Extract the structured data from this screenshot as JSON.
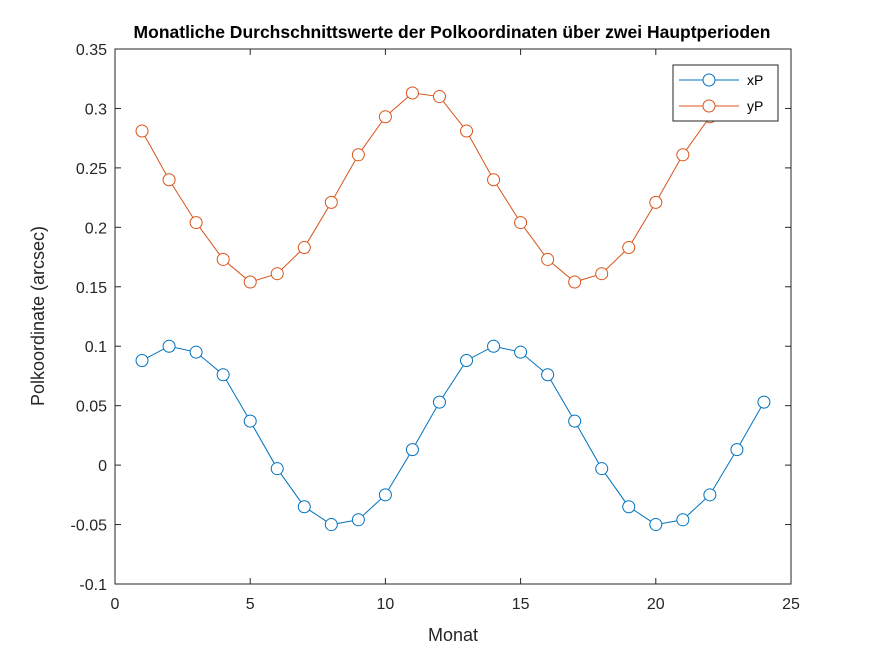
{
  "colors": {
    "xP": "#0072BD",
    "yP": "#D95319",
    "axis": "#262626"
  },
  "chart_data": {
    "type": "line",
    "title": "Monatliche Durchschnittswerte der Polkoordinaten über zwei Hauptperioden",
    "xlabel": "Monat",
    "ylabel": "Polkoordinate (arcsec)",
    "xlim": [
      0,
      25
    ],
    "ylim": [
      -0.1,
      0.35
    ],
    "xticks": [
      0,
      5,
      10,
      15,
      20,
      25
    ],
    "xtick_labels": [
      "0",
      "5",
      "10",
      "15",
      "20",
      "25"
    ],
    "yticks": [
      -0.1,
      -0.05,
      0,
      0.05,
      0.1,
      0.15,
      0.2,
      0.25,
      0.3,
      0.35
    ],
    "ytick_labels": [
      "-0.1",
      "-0.05",
      "0",
      "0.05",
      "0.1",
      "0.15",
      "0.2",
      "0.25",
      "0.3",
      "0.35"
    ],
    "grid": false,
    "legend_position": "top-right",
    "marker": "open-circle",
    "x": [
      1,
      2,
      3,
      4,
      5,
      6,
      7,
      8,
      9,
      10,
      11,
      12,
      13,
      14,
      15,
      16,
      17,
      18,
      19,
      20,
      21,
      22,
      23,
      24
    ],
    "series": [
      {
        "name": "xP",
        "color": "#0072BD",
        "values": [
          0.088,
          0.1,
          0.095,
          0.076,
          0.037,
          -0.003,
          -0.035,
          -0.05,
          -0.046,
          -0.025,
          0.013,
          0.053,
          0.088,
          0.1,
          0.095,
          0.076,
          0.037,
          -0.003,
          -0.035,
          -0.05,
          -0.046,
          -0.025,
          0.013,
          0.053
        ]
      },
      {
        "name": "yP",
        "color": "#D95319",
        "values": [
          0.281,
          0.24,
          0.204,
          0.173,
          0.154,
          0.161,
          0.183,
          0.221,
          0.261,
          0.293,
          0.313,
          0.31,
          0.281,
          0.24,
          0.204,
          0.173,
          0.154,
          0.161,
          0.183,
          0.221,
          0.261,
          0.293,
          0.313,
          0.31
        ]
      }
    ]
  }
}
